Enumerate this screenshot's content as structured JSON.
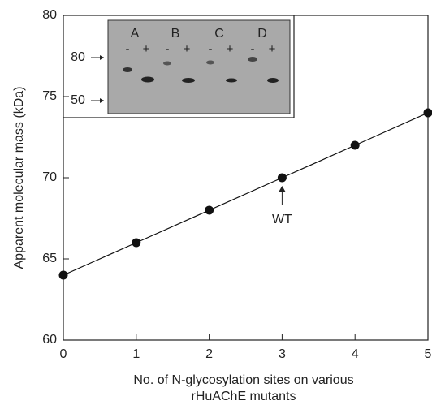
{
  "chart_data": {
    "type": "scatter",
    "y_label": "Apparent molecular mass (kDa)",
    "x_label": [
      "No. of N-glycosylation sites on various",
      "rHuAChE mutants"
    ],
    "x": [
      0,
      1,
      2,
      3,
      4,
      5
    ],
    "values": [
      64,
      66,
      68,
      70,
      72,
      74
    ],
    "color": "#111111",
    "xlim": [
      0,
      5
    ],
    "ylim": [
      60,
      80
    ],
    "xticks": [
      0,
      1,
      2,
      3,
      4,
      5
    ],
    "yticks": [
      60,
      65,
      70,
      75,
      80
    ],
    "annotation": {
      "text": "WT",
      "x": 3
    },
    "inset": {
      "lanes": [
        "A",
        "B",
        "C",
        "D"
      ],
      "signs": [
        "-",
        "+"
      ],
      "markers": [
        80,
        50
      ]
    }
  }
}
